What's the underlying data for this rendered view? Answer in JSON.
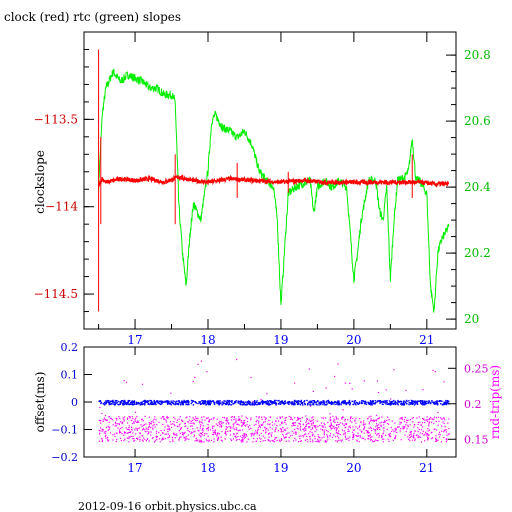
{
  "title": "clock (red) rtc (green) slopes",
  "footer": "2012-09-16 orbit.physics.ubc.ca",
  "colors": {
    "clock": "#ff0000",
    "rtc": "#00ee00",
    "offset": "#0000ff",
    "rndtrip": "#ff00ff",
    "axis": "#000000"
  },
  "chart_data": [
    {
      "type": "line",
      "title": "clock (red) rtc (green) slopes",
      "xlabel": "",
      "ylabel": "clockslope",
      "y2label": "",
      "xlim": [
        16.3,
        21.4
      ],
      "ylim": [
        -114.7,
        -113.0
      ],
      "y2lim": [
        19.97,
        20.87
      ],
      "xticks": [
        "17",
        "18",
        "19",
        "20",
        "21"
      ],
      "yticks": [
        "-113.5",
        "-114",
        "-114.5"
      ],
      "y2ticks": [
        "20.8",
        "20.6",
        "20.4",
        "20.2",
        "20"
      ],
      "series": [
        {
          "name": "clock",
          "axis": "left",
          "x": [
            16.5,
            16.55,
            16.6,
            16.8,
            17.0,
            17.2,
            17.4,
            17.6,
            17.8,
            18.0,
            18.3,
            18.6,
            19.0,
            19.3,
            19.6,
            20.0,
            20.3,
            20.6,
            20.9,
            21.1,
            21.3
          ],
          "y": [
            -113.88,
            -113.84,
            -113.86,
            -113.84,
            -113.85,
            -113.84,
            -113.86,
            -113.83,
            -113.85,
            -113.86,
            -113.84,
            -113.85,
            -113.86,
            -113.85,
            -113.86,
            -113.86,
            -113.86,
            -113.86,
            -113.86,
            -113.87,
            -113.87
          ]
        },
        {
          "name": "rtc",
          "axis": "right",
          "x": [
            16.5,
            16.55,
            16.6,
            16.7,
            16.8,
            16.9,
            17.0,
            17.1,
            17.2,
            17.3,
            17.4,
            17.5,
            17.55,
            17.6,
            17.65,
            17.7,
            17.75,
            17.8,
            17.9,
            18.0,
            18.05,
            18.1,
            18.2,
            18.3,
            18.4,
            18.5,
            18.6,
            18.7,
            18.8,
            18.9,
            18.95,
            19.0,
            19.1,
            19.2,
            19.3,
            19.4,
            19.45,
            19.5,
            19.6,
            19.7,
            19.8,
            19.9,
            20.0,
            20.05,
            20.1,
            20.2,
            20.3,
            20.35,
            20.4,
            20.45,
            20.5,
            20.55,
            20.6,
            20.7,
            20.75,
            20.8,
            20.85,
            20.9,
            21.0,
            21.05,
            21.1,
            21.15,
            21.2,
            21.3
          ],
          "y": [
            20.4,
            20.62,
            20.7,
            20.75,
            20.72,
            20.74,
            20.73,
            20.72,
            20.7,
            20.7,
            20.68,
            20.68,
            20.66,
            20.35,
            20.2,
            20.1,
            20.25,
            20.35,
            20.3,
            20.45,
            20.6,
            20.62,
            20.58,
            20.57,
            20.55,
            20.57,
            20.53,
            20.45,
            20.42,
            20.4,
            20.3,
            20.04,
            20.38,
            20.4,
            20.41,
            20.42,
            20.32,
            20.4,
            20.42,
            20.4,
            20.42,
            20.4,
            20.12,
            20.2,
            20.3,
            20.42,
            20.42,
            20.33,
            20.3,
            20.4,
            20.12,
            20.3,
            20.42,
            20.43,
            20.45,
            20.55,
            20.42,
            20.42,
            20.38,
            20.1,
            20.02,
            20.2,
            20.24,
            20.28
          ]
        }
      ]
    },
    {
      "type": "scatter",
      "xlabel": "",
      "ylabel": "offset(ms)",
      "y2label": "rnd-trip(ms)",
      "xlim": [
        16.3,
        21.4
      ],
      "ylim": [
        -0.2,
        0.2
      ],
      "y2lim": [
        0.125,
        0.28
      ],
      "xticks": [
        "17",
        "18",
        "19",
        "20",
        "21"
      ],
      "yticks": [
        "0.2",
        "0.1",
        "0",
        "-0.1",
        "-0.2"
      ],
      "y2ticks": [
        "0.25",
        "0.2",
        "0.15"
      ],
      "series": [
        {
          "name": "offset",
          "axis": "left",
          "x_range": [
            16.5,
            21.3
          ],
          "center": 0.0,
          "spread": 0.008
        },
        {
          "name": "rnd-trip",
          "axis": "right",
          "x_range": [
            16.5,
            21.3
          ],
          "center": 0.165,
          "spread": 0.018
        }
      ]
    }
  ]
}
